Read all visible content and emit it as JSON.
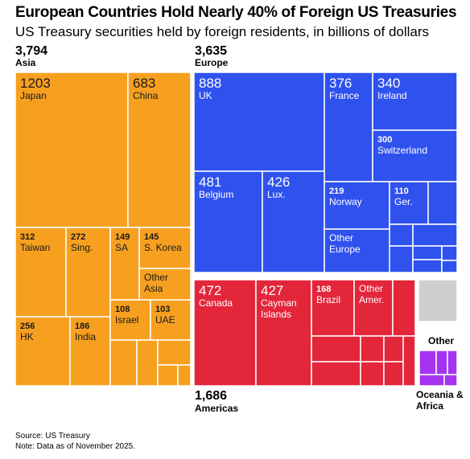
{
  "title": "European Countries Hold Nearly 40% of Foreign US Treasuries",
  "subtitle": "US Treasury securities held by foreign residents, in billions of dollars",
  "source": "Source: US Treasury",
  "note": "Note: Data as of November 2025.",
  "regions": {
    "asia": {
      "value": "3,794",
      "name": "Asia"
    },
    "europe": {
      "value": "3,635",
      "name": "Europe"
    },
    "americas": {
      "value": "1,686",
      "name": "Americas"
    },
    "other": {
      "name": "Other"
    },
    "oceania_africa": {
      "name": "Oceania & Africa"
    }
  },
  "colors": {
    "asia": "#f7a020",
    "europe": "#2f52ee",
    "americas": "#e3263a",
    "other": "#cfcfcf",
    "oceania_africa": "#a434f2",
    "cell_border": "#ffffff"
  },
  "chart_data": {
    "type": "treemap",
    "unit": "billions of dollars",
    "groups": [
      {
        "name": "Asia",
        "total": 3794,
        "items": [
          {
            "label": "Japan",
            "value": 1203
          },
          {
            "label": "China",
            "value": 683
          },
          {
            "label": "Taiwan",
            "value": 312
          },
          {
            "label": "Sing.",
            "value": 272
          },
          {
            "label": "SA",
            "value": 149
          },
          {
            "label": "S. Korea",
            "value": 145
          },
          {
            "label": "Other Asia",
            "value": null
          },
          {
            "label": "HK",
            "value": 256
          },
          {
            "label": "India",
            "value": 186
          },
          {
            "label": "Israel",
            "value": 108
          },
          {
            "label": "UAE",
            "value": 103
          }
        ]
      },
      {
        "name": "Europe",
        "total": 3635,
        "items": [
          {
            "label": "UK",
            "value": 888
          },
          {
            "label": "France",
            "value": 376
          },
          {
            "label": "Ireland",
            "value": 340
          },
          {
            "label": "Switzerland",
            "value": 300
          },
          {
            "label": "Belgium",
            "value": 481
          },
          {
            "label": "Lux.",
            "value": 426
          },
          {
            "label": "Norway",
            "value": 219
          },
          {
            "label": "Ger.",
            "value": 110
          },
          {
            "label": "Other Europe",
            "value": null
          }
        ]
      },
      {
        "name": "Americas",
        "total": 1686,
        "items": [
          {
            "label": "Canada",
            "value": 472
          },
          {
            "label": "Cayman Islands",
            "value": 427
          },
          {
            "label": "Brazil",
            "value": 168
          },
          {
            "label": "Other Amer.",
            "value": null
          }
        ]
      },
      {
        "name": "Other",
        "total": null,
        "items": []
      },
      {
        "name": "Oceania & Africa",
        "total": null,
        "items": []
      }
    ]
  }
}
